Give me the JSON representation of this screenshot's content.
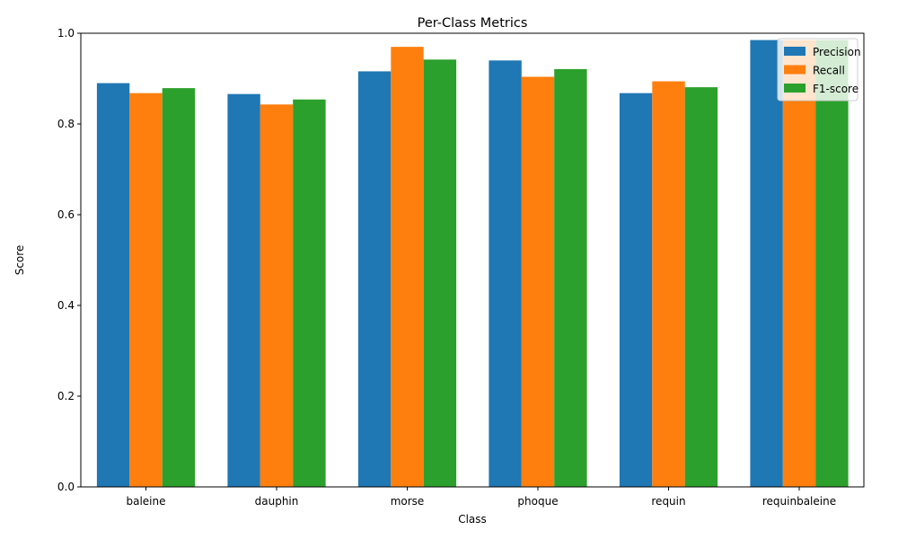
{
  "chart_data": {
    "type": "bar",
    "title": "Per-Class Metrics",
    "xlabel": "Class",
    "ylabel": "Score",
    "ylim": [
      0,
      1.0
    ],
    "yticks": [
      "0.0",
      "0.2",
      "0.4",
      "0.6",
      "0.8",
      "1.0"
    ],
    "categories": [
      "baleine",
      "dauphin",
      "morse",
      "phoque",
      "requin",
      "requinbaleine"
    ],
    "series": [
      {
        "name": "Precision",
        "color": "#1f77b4",
        "values": [
          0.89,
          0.866,
          0.916,
          0.94,
          0.868,
          0.985
        ]
      },
      {
        "name": "Recall",
        "color": "#ff7f0e",
        "values": [
          0.868,
          0.843,
          0.97,
          0.904,
          0.894,
          0.985
        ]
      },
      {
        "name": "F1-score",
        "color": "#2ca02c",
        "values": [
          0.879,
          0.854,
          0.942,
          0.921,
          0.881,
          0.985
        ]
      }
    ],
    "legend_position": "top-right",
    "grid": false
  }
}
